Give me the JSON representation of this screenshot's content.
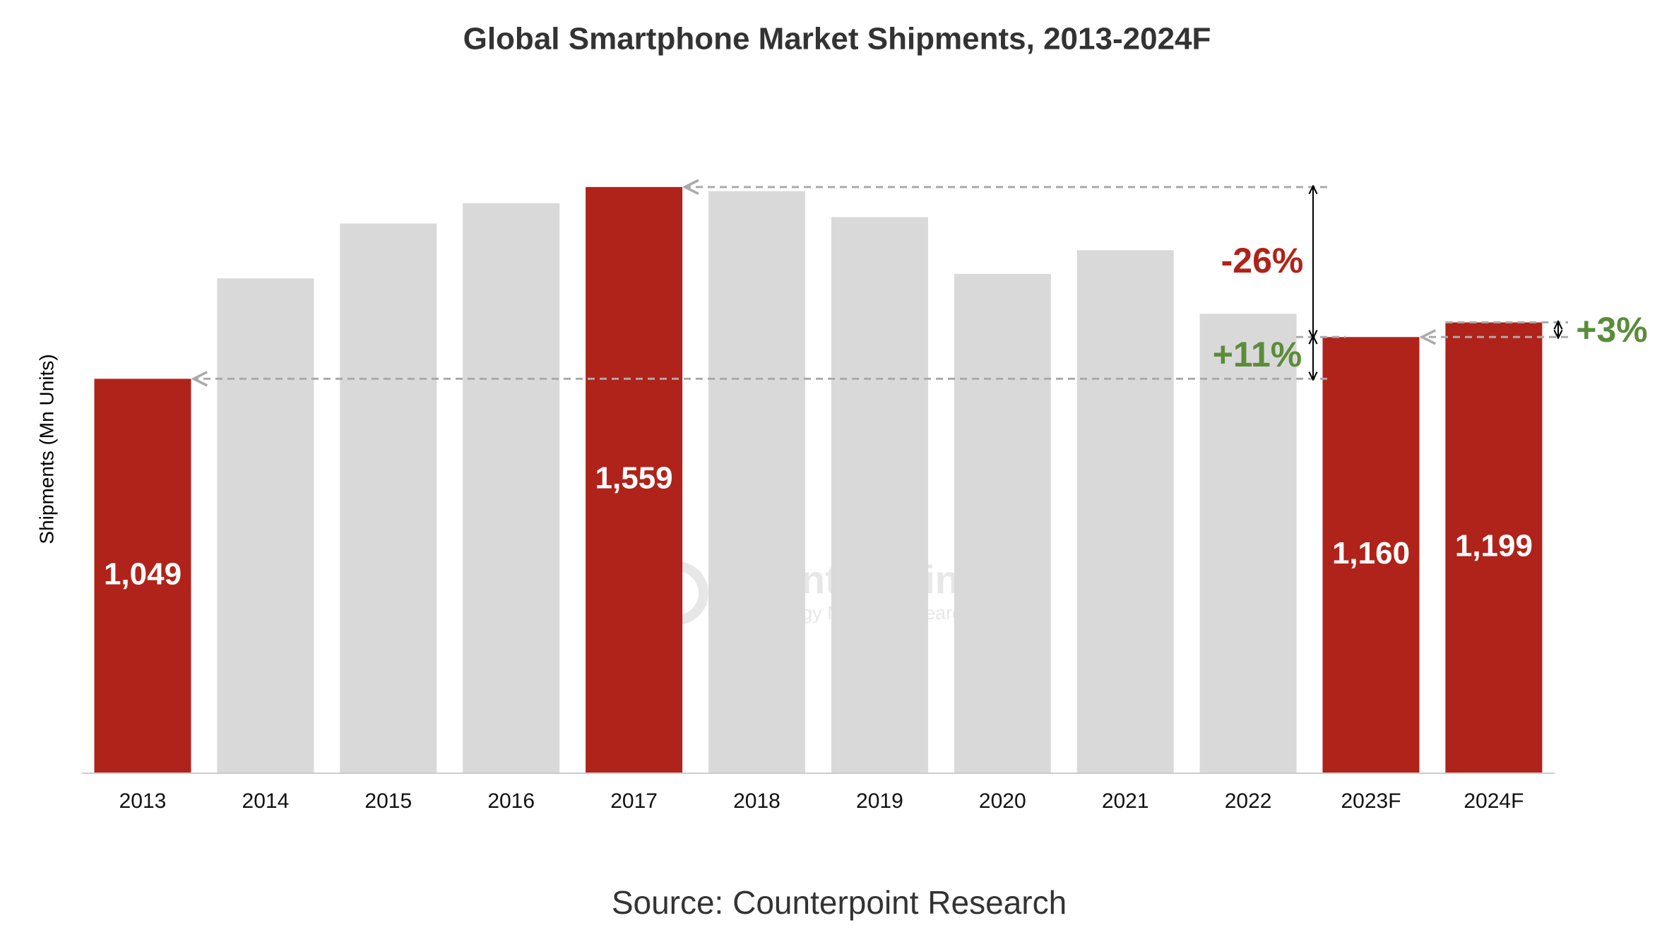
{
  "chart_data": {
    "type": "bar",
    "title": "Global Smartphone Market Shipments, 2013-2024F",
    "y_label": "Shipments (Mn Units)",
    "categories": [
      "2013",
      "2014",
      "2015",
      "2016",
      "2017",
      "2018",
      "2019",
      "2020",
      "2021",
      "2022",
      "2023F",
      "2024F"
    ],
    "values": [
      1049,
      1316,
      1462,
      1516,
      1559,
      1548,
      1479,
      1328,
      1391,
      1222,
      1160,
      1199
    ],
    "value_labels": [
      "1,049",
      null,
      null,
      null,
      "1,559",
      null,
      null,
      null,
      null,
      null,
      "1,160",
      "1,199"
    ],
    "colors": [
      "#b0231a",
      "#d9d9d9",
      "#d9d9d9",
      "#d9d9d9",
      "#b0231a",
      "#d9d9d9",
      "#d9d9d9",
      "#d9d9d9",
      "#d9d9d9",
      "#d9d9d9",
      "#b0231a",
      "#b0231a"
    ],
    "ylim": [
      0,
      1600
    ],
    "annotations": [
      {
        "text": "-26%",
        "color": "#b0231a"
      },
      {
        "text": "+11%",
        "color": "#5b8c3a"
      },
      {
        "text": "+3%",
        "color": "#5b8c3a"
      }
    ],
    "watermark": {
      "title": "Counterpoint",
      "subtitle": "Technology Market Research"
    },
    "source": "Source: Counterpoint Research"
  }
}
